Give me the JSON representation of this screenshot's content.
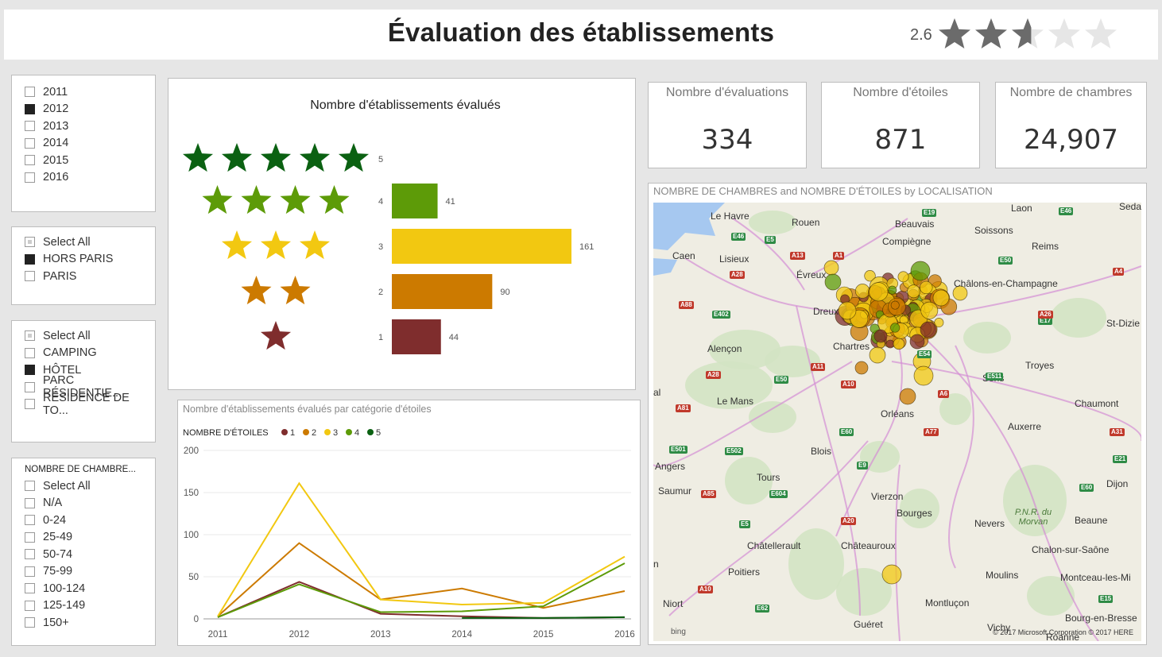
{
  "header": {
    "title": "Évaluation des établissements",
    "rating_value": "2.6",
    "rating_score": 2.6,
    "rating_max": 5
  },
  "slicers": {
    "year": {
      "items": [
        {
          "label": "2011",
          "state": "off"
        },
        {
          "label": "2012",
          "state": "on"
        },
        {
          "label": "2013",
          "state": "off"
        },
        {
          "label": "2014",
          "state": "off"
        },
        {
          "label": "2015",
          "state": "off"
        },
        {
          "label": "2016",
          "state": "off"
        }
      ]
    },
    "location": {
      "items": [
        {
          "label": "Select All",
          "state": "partial"
        },
        {
          "label": "HORS PARIS",
          "state": "on"
        },
        {
          "label": "PARIS",
          "state": "off"
        }
      ]
    },
    "type": {
      "items": [
        {
          "label": "Select All",
          "state": "partial"
        },
        {
          "label": "CAMPING",
          "state": "off"
        },
        {
          "label": "HÔTEL",
          "state": "on"
        },
        {
          "label": "PARC RÉSIDENTIE...",
          "state": "off"
        },
        {
          "label": "RÉSIDENCE DE TO...",
          "state": "off"
        }
      ]
    },
    "rooms": {
      "title": "NOMBRE DE CHAMBRE...",
      "items": [
        {
          "label": "Select All",
          "state": "off"
        },
        {
          "label": "N/A",
          "state": "off"
        },
        {
          "label": "0-24",
          "state": "off"
        },
        {
          "label": "25-49",
          "state": "off"
        },
        {
          "label": "50-74",
          "state": "off"
        },
        {
          "label": "75-99",
          "state": "off"
        },
        {
          "label": "100-124",
          "state": "off"
        },
        {
          "label": "125-149",
          "state": "off"
        },
        {
          "label": "150+",
          "state": "off"
        }
      ]
    }
  },
  "cards": [
    {
      "title": "Nombre d'évaluations",
      "value": "334"
    },
    {
      "title": "Nombre d'étoiles",
      "value": "871"
    },
    {
      "title": "Nombre de chambres",
      "value": "24,907"
    }
  ],
  "colors": {
    "star5": "#0b6112",
    "star4": "#5d9b08",
    "star3": "#f2c811",
    "star2": "#cc7a00",
    "star1": "#7f2d2d",
    "gray_star": "#6b6b6b",
    "empty_star": "#e6e6e6"
  },
  "map": {
    "title": "NOMBRE DE CHAMBRES and NOMBRE D'ÉTOILES by LOCALISATION",
    "attribution": "© 2017 Microsoft Corporation    © 2017 HERE",
    "bing": "bing",
    "cities": [
      "Le Havre",
      "Rouen",
      "Beauvais",
      "Laon",
      "Sedan",
      "Soissons",
      "Compiègne",
      "Caen",
      "Lisieux",
      "Reims",
      "Évreux",
      "Châlons-en-Champagne",
      "Dreux",
      "St-Dizie",
      "Alençon",
      "Chartres",
      "Troyes",
      "Sens",
      "Le Mans",
      "Orléans",
      "Chaumont",
      "Auxerre",
      "Blois",
      "Angers",
      "Tours",
      "Dijon",
      "Saumur",
      "Vierzon",
      "Bourges",
      "Nevers",
      "P.N.R. du Morvan",
      "Beaune",
      "Chalon-sur-Saône",
      "Châtellerault",
      "Châteauroux",
      "Poitiers",
      "Moulins",
      "Montceau-les-Mi",
      "Niort",
      "Montluçon",
      "Bourg-en-Bresse",
      "Guéret",
      "Roanne",
      "al",
      "n",
      "Vichy"
    ],
    "roads": [
      "E46",
      "E5",
      "E19",
      "E46",
      "A13",
      "A1",
      "E50",
      "A4",
      "A28",
      "A88",
      "E402",
      "E17",
      "A26",
      "A28",
      "E54",
      "A11",
      "E50",
      "A10",
      "A6",
      "E511",
      "A81",
      "A77",
      "E60",
      "A31",
      "E501",
      "E502",
      "E9",
      "E21",
      "E604",
      "A85",
      "E60",
      "A20",
      "E5",
      "A10",
      "E62",
      "E15"
    ]
  },
  "chart_data": [
    {
      "type": "bar",
      "title": "Nombre d'établissements évalués",
      "categories": [
        "5",
        "4",
        "3",
        "2",
        "1"
      ],
      "values": [
        null,
        41,
        161,
        90,
        44
      ],
      "labels": [
        "",
        "41",
        "161",
        "90",
        "44"
      ],
      "orientation": "horizontal",
      "xlim": [
        0,
        161
      ],
      "star_counts": [
        5,
        4,
        3,
        2,
        1
      ]
    },
    {
      "type": "line",
      "title": "Nombre  d'établissements évalués par catégorie d'étoiles",
      "legend_title": "NOMBRE D'ÉTOILES",
      "x": [
        "2011",
        "2012",
        "2013",
        "2014",
        "2015",
        "2016"
      ],
      "ylim": [
        0,
        200
      ],
      "yticks": [
        "0",
        "50",
        "100",
        "150",
        "200"
      ],
      "series": [
        {
          "name": "1",
          "values": [
            2,
            44,
            6,
            3,
            1,
            2
          ]
        },
        {
          "name": "2",
          "values": [
            3,
            90,
            23,
            36,
            13,
            33
          ]
        },
        {
          "name": "3",
          "values": [
            3,
            161,
            23,
            17,
            19,
            74
          ]
        },
        {
          "name": "4",
          "values": [
            2,
            41,
            8,
            9,
            15,
            66
          ]
        },
        {
          "name": "5",
          "values": [
            null,
            null,
            null,
            1,
            1,
            2
          ]
        }
      ]
    }
  ]
}
